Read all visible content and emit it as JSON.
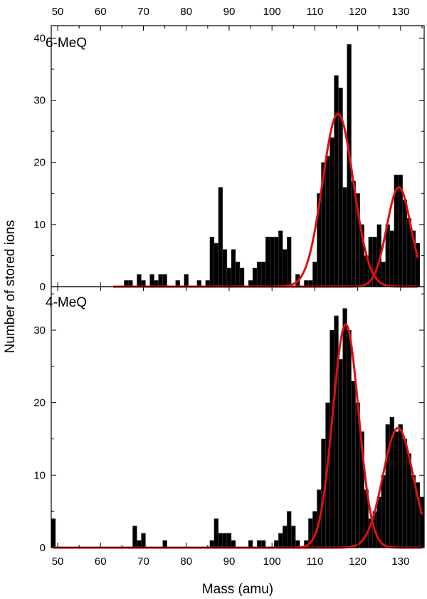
{
  "chart_data": {
    "type": "bar",
    "xlabel": "Mass (amu)",
    "ylabel": "Number of stored ions",
    "xlim": [
      48.5,
      135.5
    ],
    "x_ticks": [
      50,
      60,
      70,
      80,
      90,
      100,
      110,
      120,
      130
    ],
    "bin_width": 1,
    "fit_color": "#dd1111",
    "bar_color": "#000000",
    "panels": [
      {
        "label": "6-MeQ",
        "ylim": [
          0,
          42
        ],
        "y_ticks": [
          0,
          10,
          20,
          30,
          40
        ],
        "histogram": {
          "x": [
            64,
            65,
            66,
            67,
            68,
            69,
            70,
            71,
            72,
            73,
            74,
            75,
            76,
            77,
            78,
            79,
            80,
            81,
            82,
            83,
            84,
            85,
            86,
            87,
            88,
            89,
            90,
            91,
            92,
            93,
            94,
            95,
            96,
            97,
            98,
            99,
            100,
            101,
            102,
            103,
            104,
            105,
            106,
            107,
            108,
            109,
            110,
            111,
            112,
            113,
            114,
            115,
            116,
            117,
            118,
            119,
            120,
            121,
            122,
            123,
            124,
            125,
            126,
            127,
            128,
            129,
            130,
            131,
            132,
            133,
            134
          ],
          "values": [
            0,
            0,
            1,
            1,
            0,
            2,
            1,
            0,
            2,
            1,
            2,
            2,
            0,
            0,
            1,
            0,
            2,
            0,
            0,
            1,
            0,
            1,
            8,
            7,
            16,
            6,
            3,
            6,
            4,
            3,
            0,
            1,
            3,
            4,
            4,
            8,
            8,
            8,
            9,
            6,
            8,
            0,
            2,
            0,
            1,
            1,
            4,
            15,
            20,
            21,
            24,
            34,
            32,
            16,
            39,
            17,
            15,
            10,
            5,
            8,
            8,
            10,
            4,
            10,
            9,
            18,
            18,
            14,
            11,
            9,
            7
          ]
        },
        "fits": [
          {
            "center": 115.4,
            "amplitude": 27.8,
            "sigma": 3.6
          },
          {
            "center": 129.6,
            "amplitude": 16.0,
            "sigma": 2.8
          }
        ],
        "fit_range": [
          63,
          134
        ]
      },
      {
        "label": "4-MeQ",
        "ylim": [
          0,
          36
        ],
        "y_ticks": [
          0,
          10,
          20,
          30
        ],
        "histogram": {
          "x": [
            49,
            50,
            51,
            52,
            53,
            54,
            55,
            56,
            57,
            58,
            59,
            60,
            61,
            62,
            63,
            64,
            65,
            66,
            67,
            68,
            69,
            70,
            71,
            72,
            73,
            74,
            75,
            76,
            77,
            78,
            79,
            80,
            81,
            82,
            83,
            84,
            85,
            86,
            87,
            88,
            89,
            90,
            91,
            92,
            93,
            94,
            95,
            96,
            97,
            98,
            99,
            100,
            101,
            102,
            103,
            104,
            105,
            106,
            107,
            108,
            109,
            110,
            111,
            112,
            113,
            114,
            115,
            116,
            117,
            118,
            119,
            120,
            121,
            122,
            123,
            124,
            125,
            126,
            127,
            128,
            129,
            130,
            131,
            132,
            133,
            134,
            135
          ],
          "values": [
            4,
            0,
            0,
            0,
            0,
            0,
            0,
            0,
            0,
            0,
            0,
            0,
            0,
            0,
            0,
            0,
            0,
            0,
            0,
            3,
            1,
            2,
            0,
            0,
            0,
            0,
            1,
            0,
            0,
            0,
            0,
            0,
            0,
            0,
            0,
            0,
            0,
            1,
            4,
            2,
            2,
            2,
            1,
            0,
            0,
            0,
            1,
            0,
            1,
            1,
            0,
            0,
            1,
            2,
            3,
            5,
            3,
            1,
            0,
            1,
            4,
            5,
            8,
            15,
            20,
            30,
            32,
            26,
            33,
            30,
            23,
            20,
            16,
            8,
            4,
            5,
            7,
            10,
            17,
            18,
            16,
            17,
            15,
            13,
            10,
            9,
            7
          ]
        },
        "fits": [
          {
            "center": 117.2,
            "amplitude": 30.8,
            "sigma": 3.0
          },
          {
            "center": 129.4,
            "amplitude": 16.5,
            "sigma": 3.5
          }
        ],
        "fit_range": [
          49,
          135
        ]
      }
    ]
  }
}
